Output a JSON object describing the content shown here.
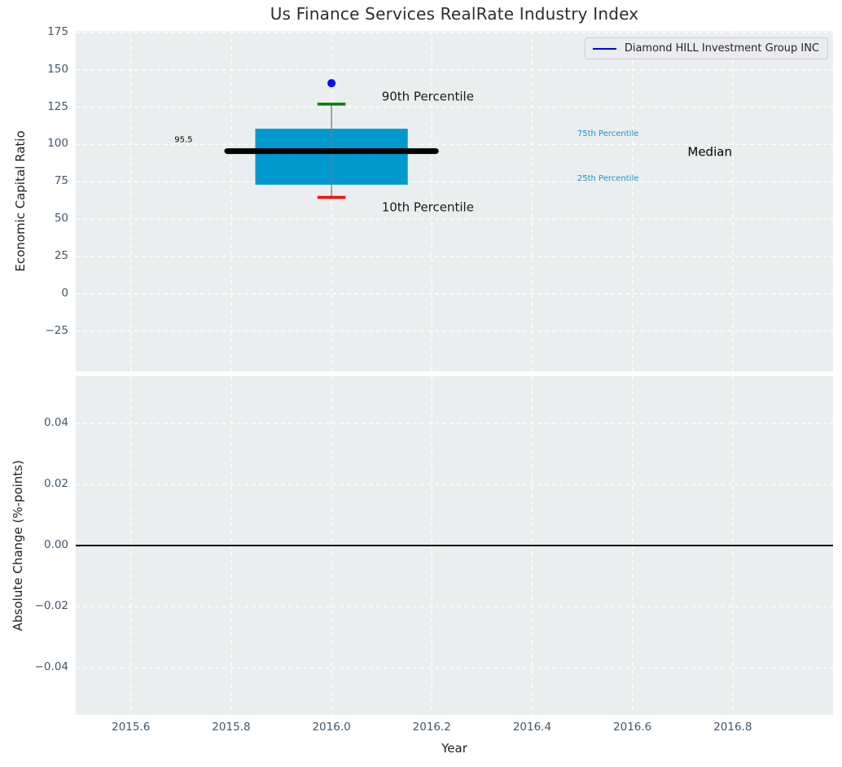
{
  "figure": {
    "title": "Us Finance Services RealRate Industry Index",
    "background": "#ffffff",
    "plot_background": "#EAEEEF",
    "grid_color": "#ffffff"
  },
  "legend": {
    "label": "Diamond HILL Investment Group INC",
    "line_color": "#0000f0",
    "position": "upper right"
  },
  "chart_data": {
    "type": "box",
    "title": "Us Finance Services RealRate Industry Index",
    "xlabel": "Year",
    "xlim": [
      2015.49,
      2017.0
    ],
    "grid": true,
    "x_ticks": [
      {
        "v": 2015.6,
        "label": "2015.6"
      },
      {
        "v": 2015.8,
        "label": "2015.8"
      },
      {
        "v": 2016.0,
        "label": "2016.0"
      },
      {
        "v": 2016.2,
        "label": "2016.2"
      },
      {
        "v": 2016.4,
        "label": "2016.4"
      },
      {
        "v": 2016.6,
        "label": "2016.6"
      },
      {
        "v": 2016.8,
        "label": "2016.8"
      }
    ],
    "top": {
      "ylabel": "Economic Capital Ratio",
      "ylim": [
        -52,
        176
      ],
      "y_ticks": [
        {
          "v": 175,
          "label": "175"
        },
        {
          "v": 150,
          "label": "150"
        },
        {
          "v": 125,
          "label": "125"
        },
        {
          "v": 100,
          "label": "100"
        },
        {
          "v": 75,
          "label": "75"
        },
        {
          "v": 50,
          "label": "50"
        },
        {
          "v": 25,
          "label": "25"
        },
        {
          "v": 0,
          "label": "0"
        },
        {
          "v": -25,
          "label": "−25"
        }
      ],
      "box": {
        "x_left": 2015.848,
        "x_right": 2016.152,
        "p25": 73,
        "p75": 110.5,
        "color": "#0099CE"
      },
      "median": {
        "value": 95.5,
        "x_left": 2015.792,
        "x_right": 2016.208,
        "color": "#000000",
        "label": "95.5"
      },
      "whisker": {
        "x": 2016.0,
        "p10": 64.5,
        "p90": 127,
        "cap_half_width": 0.028,
        "line_color": "#7a7a7a",
        "p90_color": "#008000",
        "p10_color": "#ff0000"
      },
      "point": {
        "x": 2016.0,
        "y": 141,
        "color": "#0a0af5",
        "series": "Diamond HILL Investment Group INC"
      },
      "annotations": [
        {
          "text": "90th Percentile",
          "x": 2016.1,
          "y": 132,
          "color": "#1a1a1a",
          "size": 15,
          "anchor": "start"
        },
        {
          "text": "10th Percentile",
          "x": 2016.1,
          "y": 58,
          "color": "#1a1a1a",
          "size": 15,
          "anchor": "start"
        },
        {
          "text": "95.5",
          "x": 2015.705,
          "y": 103,
          "color": "#000000",
          "size": 10,
          "anchor": "middle"
        },
        {
          "text": "75th Percentile",
          "x": 2016.49,
          "y": 107,
          "color": "#1898c6",
          "size": 10,
          "anchor": "start"
        },
        {
          "text": "25th Percentile",
          "x": 2016.49,
          "y": 77,
          "color": "#1898c6",
          "size": 10,
          "anchor": "start"
        },
        {
          "text": "Median",
          "x": 2016.71,
          "y": 95,
          "color": "#000000",
          "size": 15,
          "anchor": "start"
        }
      ]
    },
    "bottom": {
      "ylabel": "Absolute Change (%-points)",
      "ylim": [
        -0.0555,
        0.0555
      ],
      "y_ticks": [
        {
          "v": 0.04,
          "label": "0.04"
        },
        {
          "v": 0.02,
          "label": "0.02"
        },
        {
          "v": 0.0,
          "label": "0.00"
        },
        {
          "v": -0.02,
          "label": "−0.02"
        },
        {
          "v": -0.04,
          "label": "−0.04"
        }
      ],
      "zero_line": {
        "value": 0.0,
        "color": "#000000"
      }
    }
  }
}
